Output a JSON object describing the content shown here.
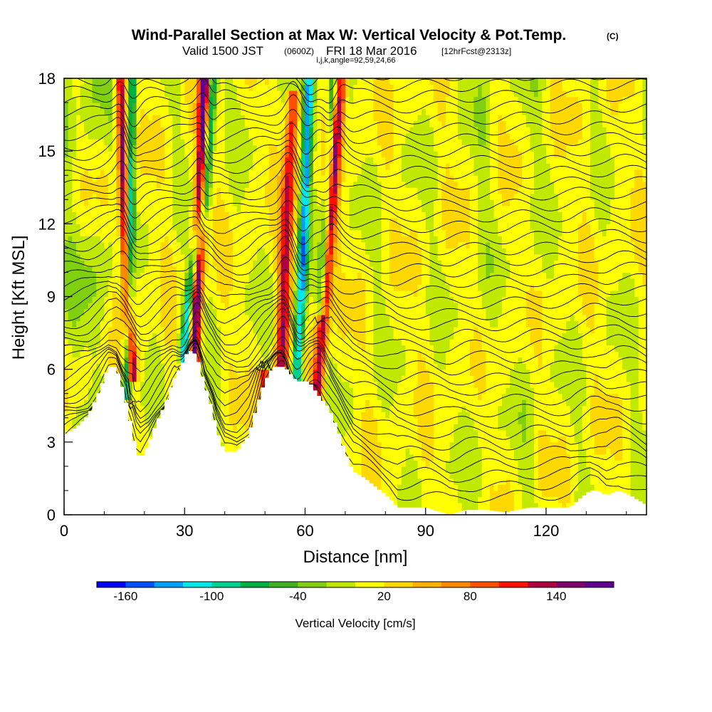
{
  "header": {
    "title": "Wind-Parallel Section at Max W: Vertical Velocity & Pot.Temp.",
    "copyright": "(C)",
    "valid_prefix": "Valid 1500 JST",
    "valid_utc": "(0600Z)",
    "valid_date": "FRI 18 Mar 2016",
    "forecast": "[12hrFcst@2313z]",
    "params": "i,j,k,angle=92,59,24,66"
  },
  "chart_data": {
    "type": "heatmap",
    "xlabel": "Distance [nm]",
    "ylabel": "Height [Kft MSL]",
    "xlim": [
      0,
      145
    ],
    "ylim": [
      0,
      18
    ],
    "x_ticks": [
      0,
      30,
      60,
      90,
      120
    ],
    "y_ticks": [
      0,
      3,
      6,
      9,
      12,
      15,
      18
    ],
    "colorbar": {
      "title": "Vertical Velocity [cm/s]",
      "tick_labels": [
        "-160",
        "-100",
        "-40",
        "20",
        "80",
        "140"
      ],
      "tick_values": [
        -160,
        -100,
        -40,
        20,
        80,
        140
      ],
      "range": [
        -180,
        180
      ],
      "bin_colors": [
        "#0000ff",
        "#0050ff",
        "#00a0ff",
        "#00e8e8",
        "#00d090",
        "#00b040",
        "#40b020",
        "#80d010",
        "#c0e800",
        "#ffff00",
        "#ffd800",
        "#ffb000",
        "#ff8800",
        "#ff5000",
        "#ff1000",
        "#b00040",
        "#800070",
        "#600090"
      ]
    },
    "terrain": [
      [
        0,
        3.3
      ],
      [
        3,
        3.6
      ],
      [
        6,
        4.1
      ],
      [
        9,
        5.2
      ],
      [
        11,
        6.1
      ],
      [
        13,
        6.1
      ],
      [
        15,
        5.0
      ],
      [
        17,
        3.5
      ],
      [
        18,
        2.6
      ],
      [
        19,
        2.3
      ],
      [
        21,
        2.9
      ],
      [
        23,
        3.8
      ],
      [
        25,
        4.5
      ],
      [
        27,
        5.5
      ],
      [
        29,
        6.1
      ],
      [
        31,
        6.8
      ],
      [
        33,
        6.6
      ],
      [
        35,
        5.4
      ],
      [
        37,
        4.3
      ],
      [
        38,
        3.5
      ],
      [
        40,
        2.6
      ],
      [
        43,
        2.6
      ],
      [
        46,
        3.3
      ],
      [
        48,
        4.5
      ],
      [
        50,
        5.5
      ],
      [
        52,
        6.1
      ],
      [
        55,
        6.1
      ],
      [
        58,
        5.5
      ],
      [
        61,
        5.5
      ],
      [
        63,
        5.0
      ],
      [
        66,
        4.4
      ],
      [
        68,
        3.6
      ],
      [
        70,
        2.6
      ],
      [
        72,
        1.8
      ],
      [
        75,
        1.5
      ],
      [
        78,
        1.1
      ],
      [
        81,
        0.7
      ],
      [
        83,
        0.3
      ],
      [
        86,
        0.3
      ],
      [
        90,
        0.3
      ],
      [
        96,
        0
      ],
      [
        100,
        0.2
      ],
      [
        105,
        0.2
      ],
      [
        110,
        0.1
      ],
      [
        116,
        0.3
      ],
      [
        122,
        0.3
      ],
      [
        126,
        0.3
      ],
      [
        128,
        0.6
      ],
      [
        131,
        1.0
      ],
      [
        133,
        1.0
      ],
      [
        135,
        0.8
      ],
      [
        138,
        1.0
      ],
      [
        141,
        0.8
      ],
      [
        145,
        0.4
      ]
    ],
    "updrafts": [
      {
        "center_at": [
          [
            14,
            18
          ],
          [
            15,
            12
          ],
          [
            16,
            8
          ],
          [
            17,
            6.2
          ]
        ],
        "peak_cms": 150,
        "width_nm": 1.2
      },
      {
        "center_at": [
          [
            35,
            18
          ],
          [
            34,
            13
          ],
          [
            33,
            9
          ],
          [
            32.5,
            6.8
          ]
        ],
        "peak_cms": 170,
        "width_nm": 1.4
      },
      {
        "center_at": [
          [
            57,
            17
          ],
          [
            56,
            14
          ],
          [
            55,
            10
          ],
          [
            54,
            6.1
          ]
        ],
        "peak_cms": 120,
        "width_nm": 1.6
      },
      {
        "center_at": [
          [
            69,
            18
          ],
          [
            67,
            14
          ],
          [
            65,
            9
          ],
          [
            63,
            5.2
          ]
        ],
        "peak_cms": 130,
        "width_nm": 1.5
      },
      {
        "center_at": [
          [
            50,
            4.5
          ],
          [
            50,
            5.5
          ]
        ],
        "peak_cms": 110,
        "width_nm": 1.4
      }
    ],
    "downdrafts": [
      {
        "center_at": [
          [
            17,
            18
          ],
          [
            16.5,
            12
          ],
          [
            16,
            8
          ],
          [
            15.5,
            5.5
          ]
        ],
        "peak_cms": -110,
        "width_nm": 1.0
      },
      {
        "center_at": [
          [
            37,
            18
          ],
          [
            35,
            13
          ],
          [
            31,
            9
          ],
          [
            30,
            7
          ]
        ],
        "peak_cms": -130,
        "width_nm": 1.2
      },
      {
        "center_at": [
          [
            61,
            18
          ],
          [
            60,
            13
          ],
          [
            59,
            9
          ],
          [
            58,
            6.2
          ]
        ],
        "peak_cms": -140,
        "width_nm": 1.3
      },
      {
        "center_at": [
          [
            67,
            18
          ],
          [
            66,
            14
          ],
          [
            64,
            9
          ]
        ],
        "peak_cms": -90,
        "width_nm": 1.0
      }
    ],
    "theta_contours": {
      "count": 40,
      "interval_note": "potential temperature isentropes"
    }
  }
}
